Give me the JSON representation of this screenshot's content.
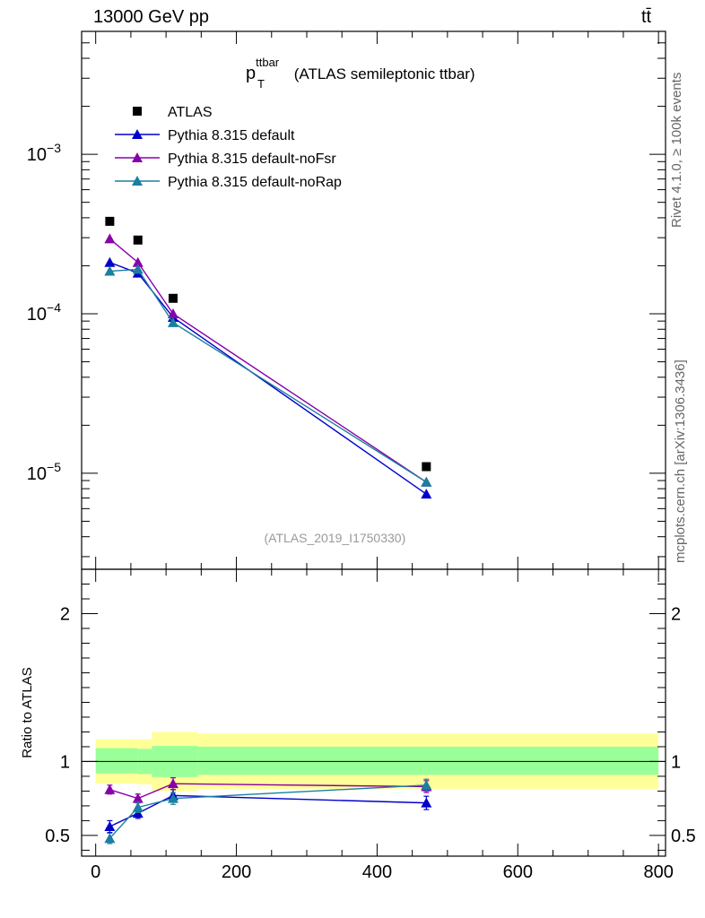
{
  "header": {
    "energy_label": "13000 GeV pp",
    "process_label": "tt̄"
  },
  "side_labels": {
    "rivet": "Rivet 4.1.0, ≥ 100k events",
    "mcplots": "mcplots.cern.ch [arXiv:1306.3436]"
  },
  "chart_data": {
    "type": "line",
    "title": {
      "main": "p",
      "sub": "T",
      "sup": "ttbar",
      "rest": " (ATLAS semileptonic ttbar)"
    },
    "analysis_tag": "(ATLAS_2019_I1750330)",
    "xlim": [
      -20,
      810
    ],
    "x_ticks": [
      "0",
      "200",
      "400",
      "600",
      "800"
    ],
    "main_panel": {
      "yscale": "log",
      "ylim": [
        2.5e-06,
        0.0059
      ],
      "y_tick_labels": [
        {
          "value": 0.001,
          "base": "10",
          "exp": "−3"
        },
        {
          "value": 0.0001,
          "base": "10",
          "exp": "−4"
        },
        {
          "value": 1e-05,
          "base": "10",
          "exp": "−5"
        }
      ]
    },
    "ratio_panel": {
      "ylabel": "Ratio to ATLAS",
      "ylim": [
        0.36,
        2.3
      ],
      "y_ticks": [
        "0.5",
        "1",
        "2"
      ],
      "bands": [
        {
          "x": [
            0,
            60
          ],
          "inner": [
            0.92,
            1.09
          ],
          "outer": [
            0.85,
            1.15
          ]
        },
        {
          "x": [
            60,
            80
          ],
          "inner": [
            0.915,
            1.085
          ],
          "outer": [
            0.845,
            1.15
          ]
        },
        {
          "x": [
            80,
            145
          ],
          "inner": [
            0.895,
            1.105
          ],
          "outer": [
            0.8,
            1.2
          ]
        },
        {
          "x": [
            145,
            800
          ],
          "inner": [
            0.91,
            1.1
          ],
          "outer": [
            0.815,
            1.19
          ]
        }
      ]
    },
    "x": [
      20,
      60,
      110,
      470
    ],
    "series": [
      {
        "name": "ATLAS",
        "color": "#000000",
        "marker": "square",
        "line": false,
        "values": [
          0.00038,
          0.00029,
          0.000125,
          1.1e-05
        ],
        "ratio": [
          1,
          1,
          1,
          1
        ],
        "ratio_err": [
          0,
          0,
          0,
          0
        ]
      },
      {
        "name": "Pythia 8.315 default",
        "color": "#0000cc",
        "marker": "triangle",
        "line": true,
        "values": [
          0.00021,
          0.00018,
          9.5e-05,
          7.4e-06
        ],
        "ratio": [
          0.56,
          0.65,
          0.77,
          0.72
        ],
        "ratio_err": [
          0.04,
          0.035,
          0.04,
          0.045
        ]
      },
      {
        "name": "Pythia 8.315 default-noFsr",
        "color": "#8800aa",
        "marker": "triangle",
        "line": true,
        "values": [
          0.000295,
          0.00021,
          0.0001,
          8.8e-06
        ],
        "ratio": [
          0.81,
          0.75,
          0.85,
          0.83
        ],
        "ratio_err": [
          0.03,
          0.03,
          0.04,
          0.04
        ]
      },
      {
        "name": "Pythia 8.315 default-noRap",
        "color": "#1a7fa0",
        "marker": "triangle",
        "line": true,
        "values": [
          0.000185,
          0.00019,
          8.8e-05,
          8.8e-06
        ],
        "ratio": [
          0.48,
          0.69,
          0.75,
          0.84
        ],
        "ratio_err": [
          0.035,
          0.035,
          0.04,
          0.04
        ]
      }
    ]
  },
  "colors": {
    "band_outer": "#ffff99",
    "band_inner": "#99ff99",
    "tag": "#999999"
  }
}
